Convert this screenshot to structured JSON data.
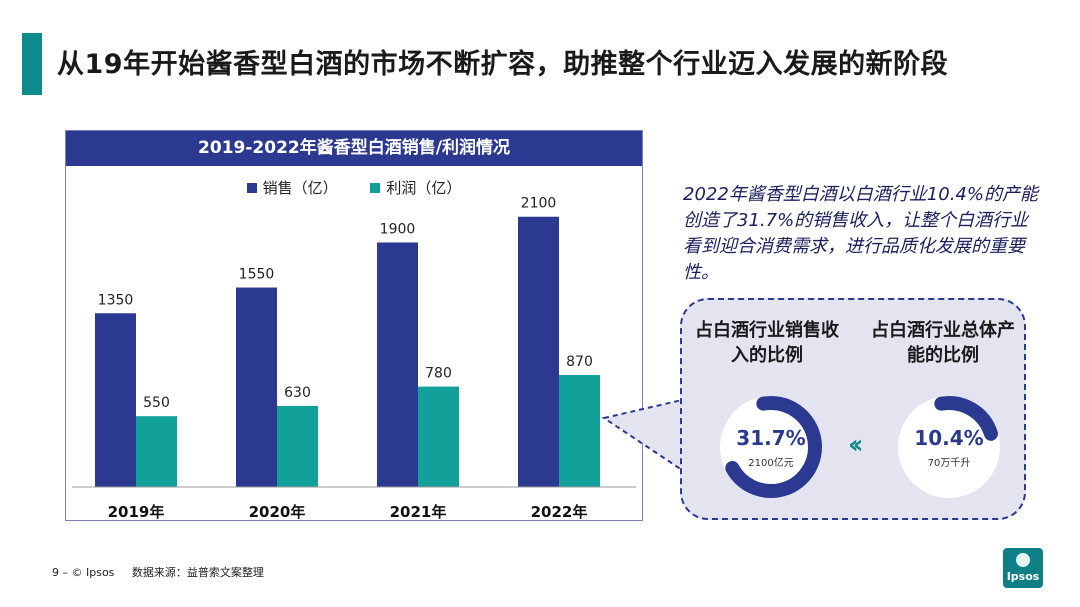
{
  "page": {
    "title": "从19年开始酱香型白酒的市场不断扩容，助推整个行业迈入发展的新阶段"
  },
  "chart_data": {
    "type": "bar",
    "title": "2019-2022年酱香型白酒销售/利润情况",
    "categories": [
      "2019年",
      "2020年",
      "2021年",
      "2022年"
    ],
    "series": [
      {
        "name": "销售（亿）",
        "color": "#2b3990",
        "values": [
          1350,
          1550,
          1900,
          2100
        ]
      },
      {
        "name": "利润（亿）",
        "color": "#12a09a",
        "values": [
          550,
          630,
          780,
          870
        ]
      }
    ],
    "ylim": [
      0,
      2300
    ],
    "legend_position": "top-center",
    "grid": false
  },
  "insight": {
    "text": "2022年酱香型白酒以白酒行业10.4%的产能创造了31.7%的销售收入，让整个白酒行业看到迎合消费需求，进行品质化发展的重要性。"
  },
  "stats": [
    {
      "title": "占白酒行业销售收入的比例",
      "value": "31.7%",
      "sub": "2100亿元",
      "fraction": 0.317,
      "color": "#2b3990"
    },
    {
      "title": "占白酒行业总体产能的比例",
      "value": "10.4%",
      "sub": "70万千升",
      "fraction": 0.104,
      "color": "#2b3990"
    }
  ],
  "arrow_icon": "double-chevron-left-icon",
  "footer": {
    "page_number": "9 –",
    "copyright": "© Ipsos",
    "source": "数据来源：益普索文案整理"
  },
  "logo": {
    "text": "Ipsos"
  }
}
